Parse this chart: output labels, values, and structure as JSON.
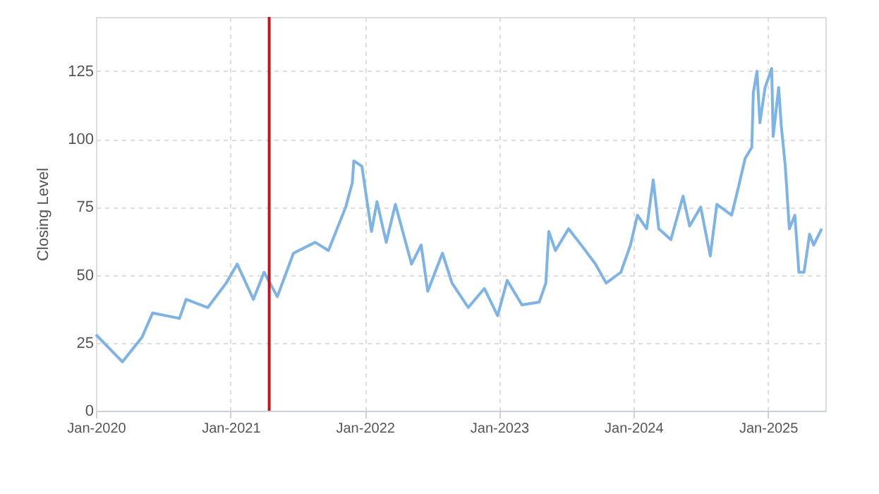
{
  "chart_data": {
    "type": "line",
    "ylabel": "Closing Level",
    "x": [
      "2020-01-01",
      "2020-03-13",
      "2020-05-05",
      "2020-06-03",
      "2020-08-15",
      "2020-09-02",
      "2020-10-31",
      "2020-12-20",
      "2021-01-19",
      "2021-03-04",
      "2021-04-02",
      "2021-05-08",
      "2021-06-21",
      "2021-08-19",
      "2021-09-24",
      "2021-11-10",
      "2021-11-28",
      "2021-12-02",
      "2021-12-24",
      "2022-01-19",
      "2022-02-03",
      "2022-02-28",
      "2022-03-25",
      "2022-05-08",
      "2022-06-03",
      "2022-06-21",
      "2022-07-31",
      "2022-08-26",
      "2022-10-09",
      "2022-11-22",
      "2022-12-28",
      "2023-01-23",
      "2023-03-04",
      "2023-04-20",
      "2023-05-08",
      "2023-05-16",
      "2023-06-03",
      "2023-07-09",
      "2023-08-18",
      "2023-09-20",
      "2023-10-19",
      "2023-11-28",
      "2023-12-24",
      "2024-01-12",
      "2024-02-06",
      "2024-02-24",
      "2024-03-10",
      "2024-04-12",
      "2024-05-15",
      "2024-06-02",
      "2024-07-02",
      "2024-07-28",
      "2024-08-15",
      "2024-09-24",
      "2024-10-12",
      "2024-10-31",
      "2024-11-18",
      "2024-11-22",
      "2024-12-02",
      "2024-12-10",
      "2024-12-24",
      "2025-01-11",
      "2025-01-15",
      "2025-01-30",
      "2025-02-06",
      "2025-02-17",
      "2025-02-28",
      "2025-03-15",
      "2025-03-26",
      "2025-04-09",
      "2025-04-24",
      "2025-05-05",
      "2025-05-27"
    ],
    "series": [
      {
        "color": "#7eb3e6",
        "values": [
          28,
          18,
          27,
          36,
          34,
          41,
          38,
          47,
          54,
          41,
          51,
          42,
          58,
          62,
          59,
          75,
          84,
          92,
          90,
          66,
          77,
          62,
          76,
          54,
          61,
          44,
          58,
          47,
          38,
          45,
          35,
          48,
          39,
          40,
          47,
          66,
          59,
          67,
          60,
          54,
          47,
          51,
          61,
          72,
          67,
          85,
          67,
          63,
          79,
          68,
          75,
          57,
          76,
          72,
          82,
          93,
          97,
          117,
          125,
          106,
          119,
          126,
          101,
          119,
          105,
          90,
          67,
          72,
          51,
          51,
          65,
          61,
          67
        ]
      }
    ],
    "xlim": [
      "2020-01-01",
      "2025-06-06"
    ],
    "xticks": [
      {
        "value": "2020-01-01",
        "label": "Jan-2020"
      },
      {
        "value": "2021-01-01",
        "label": "Jan-2021"
      },
      {
        "value": "2022-01-01",
        "label": "Jan-2022"
      },
      {
        "value": "2023-01-01",
        "label": "Jan-2023"
      },
      {
        "value": "2024-01-01",
        "label": "Jan-2024"
      },
      {
        "value": "2025-01-01",
        "label": "Jan-2025"
      }
    ],
    "ylim": [
      0,
      145
    ],
    "yticks": [
      0,
      25,
      50,
      75,
      100,
      125
    ],
    "ref_lines": [
      {
        "axis": "x",
        "value": "2021-04-16",
        "color": "#c0161c"
      }
    ],
    "grid": true,
    "marker": "none",
    "line_style": "solid"
  }
}
